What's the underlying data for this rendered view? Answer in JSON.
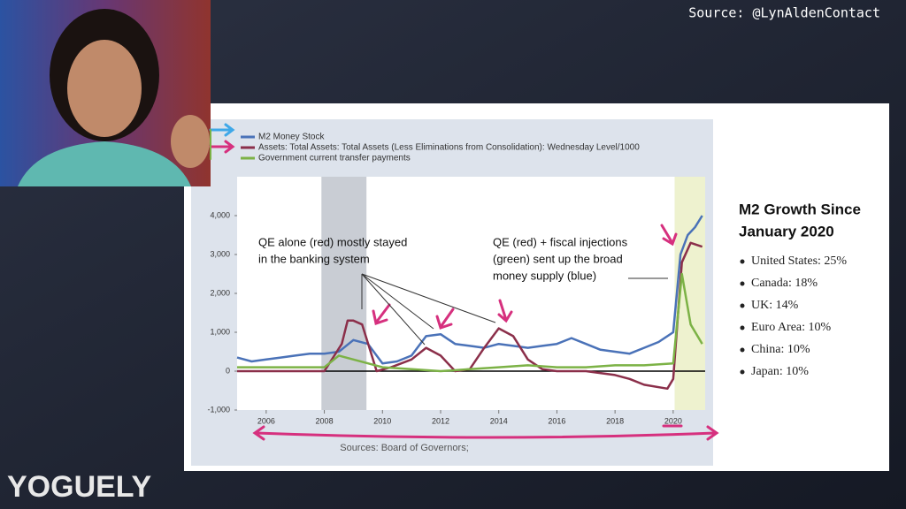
{
  "overlay": {
    "source": "Source: @LynAldenContact",
    "logo": "YOGUELY"
  },
  "chart_data": {
    "type": "line",
    "xlim": [
      2005,
      2021.1
    ],
    "ylim": [
      -1000,
      5000
    ],
    "xticks": [
      2006,
      2008,
      2010,
      2012,
      2014,
      2016,
      2018,
      2020
    ],
    "yticks": [
      {
        "value": -1000,
        "label": "-1,000"
      },
      0,
      {
        "value": 1000,
        "label": "1,000"
      },
      {
        "value": 2000,
        "label": "2,000"
      },
      {
        "value": 3000,
        "label": "3,000"
      },
      {
        "value": 4000,
        "label": "4,000"
      }
    ],
    "grid": false,
    "shaded_regions": [
      {
        "xlim": [
          2007.9,
          2009.45
        ],
        "color": "#c9cdd4"
      },
      {
        "xlim": [
          2020.05,
          2021.1
        ],
        "color": "#eef2cf"
      }
    ],
    "series": [
      {
        "name": "M2 Money Stock",
        "color": "#4a72b8",
        "x": [
          2005,
          2005.5,
          2006,
          2006.5,
          2007,
          2007.5,
          2008,
          2008.5,
          2009,
          2009.5,
          2010,
          2010.5,
          2011,
          2011.5,
          2012,
          2012.5,
          2013,
          2013.5,
          2014,
          2014.5,
          2015,
          2015.5,
          2016,
          2016.5,
          2017,
          2017.5,
          2018,
          2018.5,
          2019,
          2019.5,
          2020,
          2020.25,
          2020.5,
          2020.75,
          2021
        ],
        "values": [
          350,
          250,
          300,
          350,
          400,
          450,
          450,
          500,
          800,
          700,
          200,
          250,
          400,
          900,
          950,
          700,
          650,
          600,
          700,
          650,
          600,
          650,
          700,
          850,
          700,
          550,
          500,
          450,
          600,
          750,
          1000,
          3000,
          3500,
          3700,
          4000
        ]
      },
      {
        "name": "Assets: Total Assets: Total Assets (Less Eliminations from Consolidation): Wednesday Level/1000",
        "color": "#8b2f4a",
        "x": [
          2005,
          2007,
          2008,
          2008.6,
          2008.8,
          2009,
          2009.3,
          2009.8,
          2010.3,
          2011,
          2011.5,
          2012,
          2012.5,
          2013,
          2013.5,
          2014,
          2014.5,
          2015,
          2015.5,
          2016,
          2017,
          2018,
          2018.5,
          2019,
          2019.8,
          2020,
          2020.3,
          2020.6,
          2021
        ],
        "values": [
          0,
          0,
          0,
          700,
          1300,
          1300,
          1200,
          0,
          100,
          300,
          600,
          400,
          0,
          50,
          600,
          1100,
          900,
          300,
          50,
          0,
          0,
          -100,
          -200,
          -350,
          -450,
          -200,
          2800,
          3300,
          3200
        ]
      },
      {
        "name": "Government current transfer payments",
        "color": "#7cb246",
        "x": [
          2005,
          2008,
          2008.5,
          2009,
          2009.5,
          2010,
          2011,
          2012,
          2013,
          2014,
          2015,
          2016,
          2017,
          2018,
          2019,
          2020,
          2020.3,
          2020.6,
          2021
        ],
        "values": [
          100,
          100,
          400,
          300,
          200,
          100,
          50,
          0,
          50,
          100,
          150,
          100,
          100,
          150,
          150,
          200,
          2500,
          1200,
          700
        ]
      }
    ],
    "annotations": [
      {
        "lines": [
          "QE alone (red) mostly stayed",
          "in the banking system"
        ]
      },
      {
        "lines": [
          "QE (red) + fiscal injections",
          "(green) sent up the broad",
          "money supply (blue)"
        ]
      }
    ],
    "footer": "Sources: Board of Governors;"
  },
  "sidebar": {
    "title": [
      "M2 Growth Since",
      "January 2020"
    ],
    "items": [
      "United States: 25%",
      "Canada: 18%",
      "UK: 14%",
      "Euro Area: 10%",
      "China: 10%",
      "Japan: 10%"
    ]
  }
}
